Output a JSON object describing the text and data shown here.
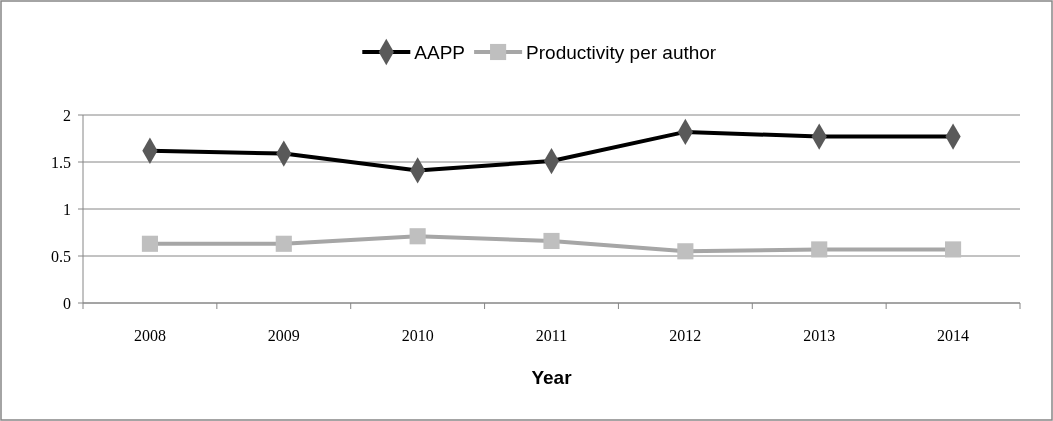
{
  "chart_data": {
    "type": "line",
    "xlabel": "Year",
    "categories": [
      "2008",
      "2009",
      "2010",
      "2011",
      "2012",
      "2013",
      "2014"
    ],
    "series": [
      {
        "name": "AAPP",
        "color": "#000000",
        "marker": "diamond",
        "values": [
          1.62,
          1.59,
          1.41,
          1.51,
          1.82,
          1.77,
          1.77
        ]
      },
      {
        "name": "Productivity per author",
        "color": "#a6a6a6",
        "marker": "square",
        "values": [
          0.63,
          0.63,
          0.71,
          0.66,
          0.55,
          0.57,
          0.57
        ]
      }
    ],
    "ylim": [
      0,
      2
    ],
    "yticks": [
      0,
      0.5,
      1,
      1.5,
      2
    ],
    "grid": "y",
    "legend": "top"
  }
}
